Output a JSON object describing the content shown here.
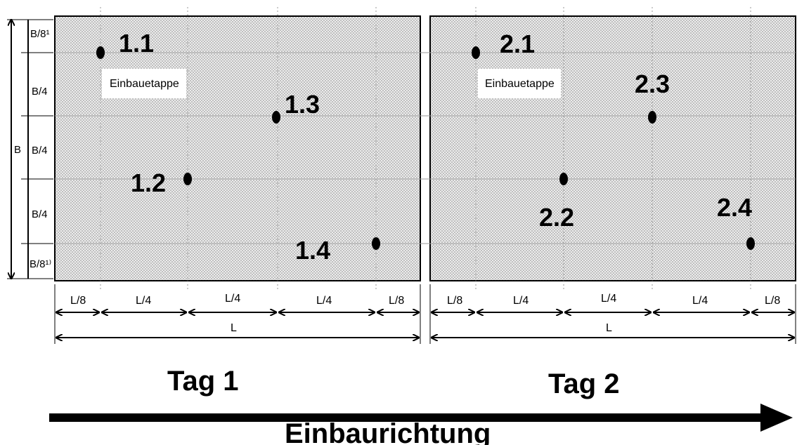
{
  "left_dims": {
    "b8_top": "B/8¹",
    "b4_a": "B/4",
    "b4_b": "B/4",
    "b4_c": "B/4",
    "b8_bottom": "B/8¹⁾",
    "b": "B"
  },
  "day1": {
    "stage_label": "Einbauetappe",
    "points": {
      "p1": "1.1",
      "p2": "1.2",
      "p3": "1.3",
      "p4": "1.4"
    },
    "dims": {
      "l8a": "L/8",
      "l4a": "L/4",
      "l4b": "L/4",
      "l4c": "L/4",
      "l8b": "L/8",
      "l": "L"
    },
    "title": "Tag 1"
  },
  "day2": {
    "stage_label": "Einbauetappe",
    "points": {
      "p1": "2.1",
      "p2": "2.2",
      "p3": "2.3",
      "p4": "2.4"
    },
    "dims": {
      "l8a": "L/8",
      "l4a": "L/4",
      "l4b": "L/4",
      "l4c": "L/4",
      "l8b": "L/8",
      "l": "L"
    },
    "title": "Tag 2"
  },
  "direction": {
    "label": "Einbaurichtung"
  },
  "colors": {
    "panel_fill": "#d8d8d8",
    "dot_pattern": "#8a8a8a",
    "ink": "#000000"
  }
}
